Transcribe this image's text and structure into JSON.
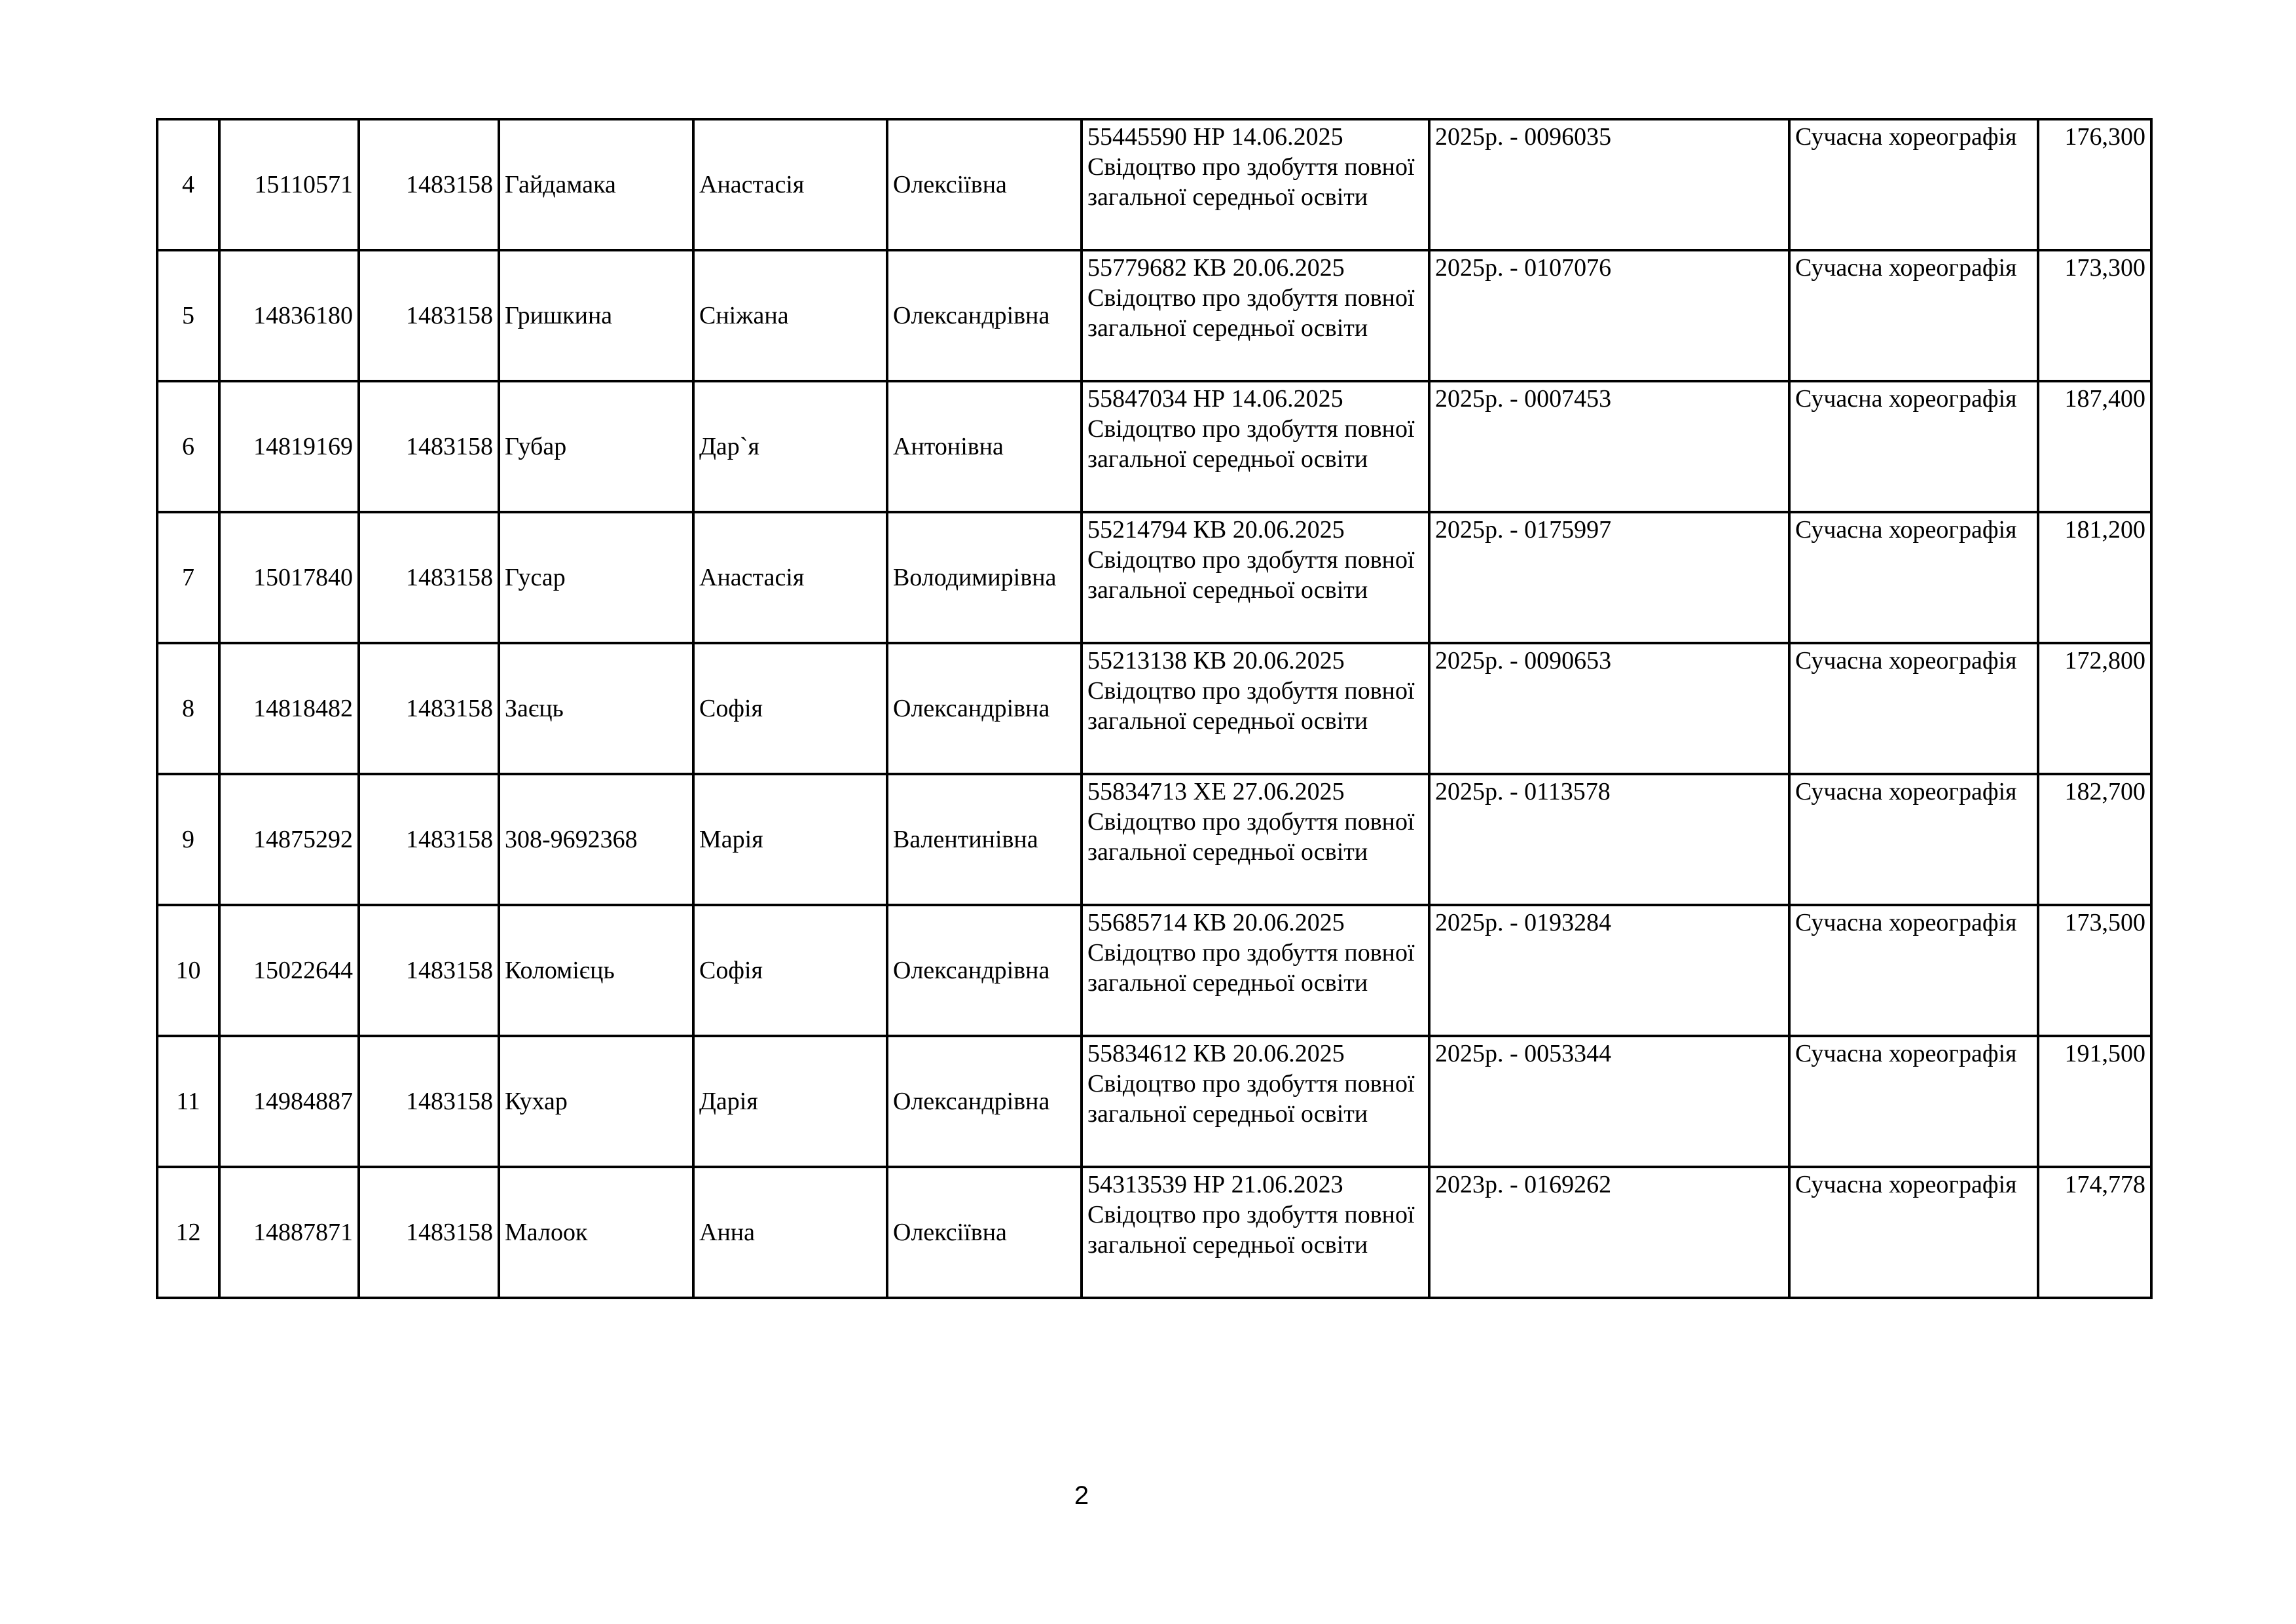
{
  "rows": [
    {
      "num": "4",
      "id1": "15110571",
      "id2": "1483158",
      "surname": "Гайдамака",
      "name": "Анастасія",
      "patronymic": "Олексіївна",
      "doc_number": "55445590 НР 14.06.2025",
      "doc_type": "Свідоцтво про здобуття повної загальної середньої освіти",
      "cert": "2025р. - 0096035",
      "specialty": "Сучасна хореографія",
      "score": "176,300"
    },
    {
      "num": "5",
      "id1": "14836180",
      "id2": "1483158",
      "surname": "Гришкина",
      "name": "Сніжана",
      "patronymic": "Олександрівна",
      "doc_number": "55779682 КВ 20.06.2025",
      "doc_type": "Свідоцтво про здобуття повної загальної середньої освіти",
      "cert": "2025р. - 0107076",
      "specialty": "Сучасна хореографія",
      "score": "173,300"
    },
    {
      "num": "6",
      "id1": "14819169",
      "id2": "1483158",
      "surname": "Губар",
      "name": "Дар`я",
      "patronymic": "Антонівна",
      "doc_number": "55847034 НР 14.06.2025",
      "doc_type": "Свідоцтво про здобуття повної загальної середньої освіти",
      "cert": "2025р. - 0007453",
      "specialty": "Сучасна хореографія",
      "score": "187,400"
    },
    {
      "num": "7",
      "id1": "15017840",
      "id2": "1483158",
      "surname": "Гусар",
      "name": "Анастасія",
      "patronymic": "Володимирівна",
      "doc_number": "55214794 КВ 20.06.2025",
      "doc_type": "Свідоцтво про здобуття повної загальної середньої освіти",
      "cert": "2025р. - 0175997",
      "specialty": "Сучасна хореографія",
      "score": "181,200"
    },
    {
      "num": "8",
      "id1": "14818482",
      "id2": "1483158",
      "surname": "Заєць",
      "name": "Софія",
      "patronymic": "Олександрівна",
      "doc_number": "55213138 КВ 20.06.2025",
      "doc_type": "Свідоцтво про здобуття повної загальної середньої освіти",
      "cert": "2025р. - 0090653",
      "specialty": "Сучасна хореографія",
      "score": "172,800"
    },
    {
      "num": "9",
      "id1": "14875292",
      "id2": "1483158",
      "surname": "308-9692368",
      "name": "Марія",
      "patronymic": "Валентинівна",
      "doc_number": "55834713 ХЕ 27.06.2025",
      "doc_type": "Свідоцтво про здобуття повної загальної середньої освіти",
      "cert": "2025р. - 0113578",
      "specialty": "Сучасна хореографія",
      "score": "182,700"
    },
    {
      "num": "10",
      "id1": "15022644",
      "id2": "1483158",
      "surname": "Коломієць",
      "name": "Софія",
      "patronymic": "Олександрівна",
      "doc_number": "55685714 КВ 20.06.2025",
      "doc_type": "Свідоцтво про здобуття повної загальної середньої освіти",
      "cert": "2025р. - 0193284",
      "specialty": "Сучасна хореографія",
      "score": "173,500"
    },
    {
      "num": "11",
      "id1": "14984887",
      "id2": "1483158",
      "surname": "Кухар",
      "name": "Дарія",
      "patronymic": "Олександрівна",
      "doc_number": "55834612 КВ 20.06.2025",
      "doc_type": "Свідоцтво про здобуття повної загальної середньої освіти",
      "cert": "2025р. - 0053344",
      "specialty": "Сучасна хореографія",
      "score": "191,500"
    },
    {
      "num": "12",
      "id1": "14887871",
      "id2": "1483158",
      "surname": "Малоок",
      "name": "Анна",
      "patronymic": "Олексіївна",
      "doc_number": "54313539 НР 21.06.2023",
      "doc_type": "Свідоцтво про здобуття повної загальної середньої освіти",
      "cert": "2023р. - 0169262",
      "specialty": "Сучасна хореографія",
      "score": "174,778"
    }
  ],
  "page_number": "2"
}
